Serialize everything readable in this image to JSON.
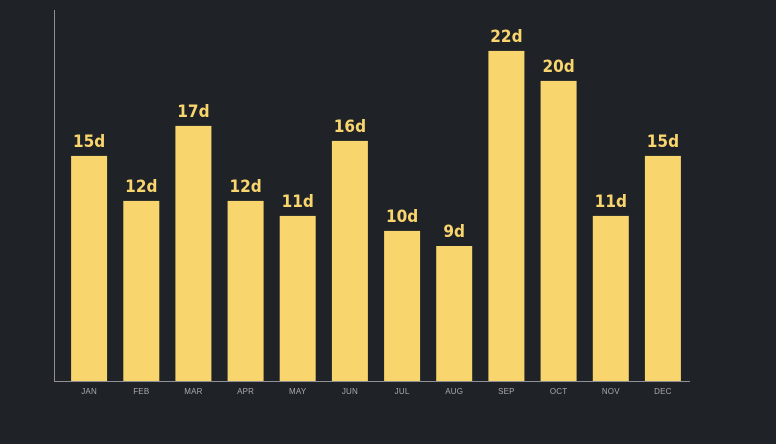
{
  "chart_data": {
    "type": "bar",
    "categories": [
      "JAN",
      "FEB",
      "MAR",
      "APR",
      "MAY",
      "JUN",
      "JUL",
      "AUG",
      "SEP",
      "OCT",
      "NOV",
      "DEC"
    ],
    "values": [
      15,
      12,
      17,
      12,
      11,
      16,
      10,
      9,
      22,
      20,
      11,
      15
    ],
    "value_suffix": "d",
    "title": "",
    "xlabel": "",
    "ylabel": "",
    "ylim": [
      0,
      24
    ],
    "grid": false,
    "legend": "none",
    "colors": {
      "background": "#1f2227",
      "bar": "#f9d56e",
      "label": "#f9d56e",
      "tick": "#a8aab0",
      "axis": "#8e9096"
    }
  }
}
